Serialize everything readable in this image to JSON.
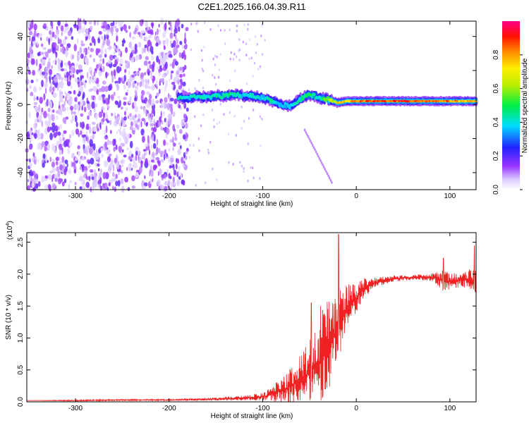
{
  "title": "C2E1.2025.166.04.39.R11",
  "colors": {
    "snr_line": "#ee2222",
    "axis": "#000000",
    "background": "#ffffff"
  },
  "chart_data": [
    {
      "type": "heatmap",
      "title": "C2E1.2025.166.04.39.R11",
      "xlabel": "Height of straight line (km)",
      "ylabel": "Frequency (Hz)",
      "xlim": [
        -352,
        128
      ],
      "ylim": [
        -50,
        49
      ],
      "x_ticks": [
        -300,
        -200,
        -100,
        0,
        100
      ],
      "x_tick_labels": [
        "-300",
        "-200",
        "-100",
        "0",
        "100"
      ],
      "y_ticks": [
        -40,
        -20,
        0,
        20,
        40
      ],
      "y_tick_labels": [
        "-40",
        "-20",
        "0",
        "20",
        "40"
      ],
      "colorbar": {
        "label": "Normalized spectral amplitude",
        "range": [
          0,
          1
        ],
        "ticks": [
          0.0,
          0.2,
          0.4,
          0.6,
          0.8
        ],
        "tick_labels": [
          "0.0",
          "0.2",
          "0.4",
          "0.6",
          "0.8"
        ],
        "colormap": "rainbow (white-violet-blue-cyan-green-yellow-red-magenta)"
      },
      "features": {
        "noise_region_x": [
          -352,
          -180
        ],
        "ridge": [
          {
            "x": -190,
            "y": 4,
            "amp": 0.45
          },
          {
            "x": -180,
            "y": 4,
            "amp": 0.4
          },
          {
            "x": -170,
            "y": 5,
            "amp": 0.45
          },
          {
            "x": -160,
            "y": 4,
            "amp": 0.4
          },
          {
            "x": -150,
            "y": 5,
            "amp": 0.45
          },
          {
            "x": -140,
            "y": 5,
            "amp": 0.5
          },
          {
            "x": -130,
            "y": 6,
            "amp": 0.45
          },
          {
            "x": -120,
            "y": 5,
            "amp": 0.4
          },
          {
            "x": -110,
            "y": 5,
            "amp": 0.45
          },
          {
            "x": -100,
            "y": 4,
            "amp": 0.4
          },
          {
            "x": -90,
            "y": 2,
            "amp": 0.45
          },
          {
            "x": -80,
            "y": 0,
            "amp": 0.4
          },
          {
            "x": -70,
            "y": -1,
            "amp": 0.4
          },
          {
            "x": -60,
            "y": 3,
            "amp": 0.45
          },
          {
            "x": -50,
            "y": 6,
            "amp": 0.5
          },
          {
            "x": -40,
            "y": 4,
            "amp": 0.45
          },
          {
            "x": -30,
            "y": 3,
            "amp": 0.6
          },
          {
            "x": -20,
            "y": 1,
            "amp": 0.75
          },
          {
            "x": -10,
            "y": 2,
            "amp": 0.8
          },
          {
            "x": 0,
            "y": 2,
            "amp": 0.85
          },
          {
            "x": 20,
            "y": 2,
            "amp": 0.9
          },
          {
            "x": 40,
            "y": 2,
            "amp": 0.92
          },
          {
            "x": 60,
            "y": 2,
            "amp": 0.92
          },
          {
            "x": 80,
            "y": 2,
            "amp": 0.9
          },
          {
            "x": 100,
            "y": 2,
            "amp": 0.85
          },
          {
            "x": 120,
            "y": 2,
            "amp": 0.8
          }
        ]
      }
    },
    {
      "type": "line",
      "xlabel": "Height of straight line (km)",
      "ylabel": "SNR (10 * v/v)",
      "y_multiplier_label": "(x10",
      "y_multiplier_exp": "4",
      "xlim": [
        -352,
        128
      ],
      "ylim": [
        0,
        2.65
      ],
      "x_ticks": [
        -300,
        -200,
        -100,
        0,
        100
      ],
      "x_tick_labels": [
        "-300",
        "-200",
        "-100",
        "0",
        "100"
      ],
      "y_ticks": [
        0.0,
        0.5,
        1.0,
        1.5,
        2.0,
        2.5
      ],
      "y_tick_labels": [
        "0.0",
        "0.5",
        "1.0",
        "1.5",
        "2.0",
        "2.5"
      ],
      "series": [
        {
          "x": [
            -352,
            -300,
            -250,
            -200,
            -160,
            -140,
            -120,
            -100,
            -90,
            -80,
            -70,
            -60,
            -50,
            -45,
            -40,
            -35,
            -30,
            -25,
            -20,
            -18,
            -15,
            -10,
            -5,
            0,
            5,
            10,
            20,
            30,
            40,
            60,
            80,
            90,
            95,
            100,
            110,
            120,
            125,
            128
          ],
          "y": [
            0.02,
            0.02,
            0.03,
            0.03,
            0.04,
            0.05,
            0.06,
            0.08,
            0.12,
            0.18,
            0.25,
            0.35,
            0.45,
            0.55,
            0.6,
            0.75,
            0.9,
            1.0,
            1.1,
            1.3,
            1.35,
            1.45,
            1.55,
            1.6,
            1.75,
            1.8,
            1.87,
            1.9,
            1.93,
            1.95,
            1.95,
            1.92,
            1.9,
            1.88,
            1.9,
            1.92,
            1.9,
            1.92
          ],
          "spread": [
            0.0,
            0.01,
            0.01,
            0.01,
            0.02,
            0.03,
            0.04,
            0.06,
            0.12,
            0.2,
            0.3,
            0.4,
            0.5,
            0.6,
            0.7,
            0.8,
            0.7,
            0.7,
            0.6,
            0.6,
            0.5,
            0.4,
            0.3,
            0.25,
            0.2,
            0.15,
            0.08,
            0.06,
            0.05,
            0.04,
            0.06,
            0.15,
            0.2,
            0.15,
            0.1,
            0.15,
            0.25,
            0.2
          ]
        }
      ],
      "peaks": [
        {
          "x": -19,
          "y": 2.62
        },
        {
          "x": -48,
          "y": 1.55
        },
        {
          "x": -38,
          "y": 1.5
        },
        {
          "x": 93,
          "y": 2.25
        },
        {
          "x": 126,
          "y": 2.45
        }
      ]
    }
  ]
}
